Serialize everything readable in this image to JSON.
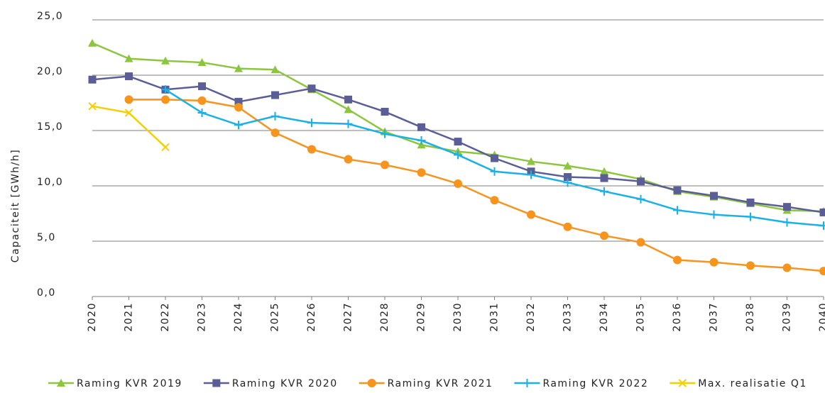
{
  "chart_data": {
    "type": "line",
    "y_label": "Capaciteit [GWh/h]",
    "categories": [
      "2020",
      "2021",
      "2022",
      "2023",
      "2024",
      "2025",
      "2026",
      "2027",
      "2028",
      "2029",
      "2030",
      "2031",
      "2032",
      "2033",
      "2034",
      "2035",
      "2036",
      "2037",
      "2038",
      "2039",
      "2040"
    ],
    "ylim": [
      0,
      25
    ],
    "yticks": [
      {
        "value": 0,
        "label": "0,0"
      },
      {
        "value": 5,
        "label": "5,0"
      },
      {
        "value": 10,
        "label": "10,0"
      },
      {
        "value": 15,
        "label": "15,0"
      },
      {
        "value": 20,
        "label": "20,0"
      },
      {
        "value": 25,
        "label": "25,0"
      }
    ],
    "grid": true,
    "legend": "bottom",
    "series": [
      {
        "name": "Raming KVR 2019",
        "color": "#8cc63e",
        "marker": "triangle",
        "values": [
          22.9,
          21.5,
          21.3,
          21.15,
          20.6,
          20.5,
          18.7,
          16.9,
          14.9,
          13.7,
          13.1,
          12.8,
          12.2,
          11.8,
          11.3,
          10.6,
          9.5,
          9.0,
          8.4,
          7.8,
          7.7
        ]
      },
      {
        "name": "Raming KVR 2020",
        "color": "#5b5e96",
        "marker": "square",
        "values": [
          19.6,
          19.9,
          18.7,
          19.0,
          17.6,
          18.2,
          18.8,
          17.8,
          16.7,
          15.3,
          14.0,
          12.5,
          11.3,
          10.8,
          10.7,
          10.4,
          9.6,
          9.1,
          8.5,
          8.1,
          7.6
        ]
      },
      {
        "name": "Raming KVR 2021",
        "color": "#f7941d",
        "marker": "circle",
        "values": [
          null,
          17.8,
          17.8,
          17.7,
          17.1,
          14.8,
          13.3,
          12.4,
          11.9,
          11.2,
          10.2,
          8.7,
          7.4,
          6.3,
          5.5,
          4.9,
          3.3,
          3.1,
          2.8,
          2.6,
          2.3
        ]
      },
      {
        "name": "Raming KVR 2022",
        "color": "#1ab0e8",
        "marker": "plus",
        "values": [
          null,
          null,
          18.7,
          16.6,
          15.5,
          16.3,
          15.7,
          15.6,
          14.7,
          14.1,
          12.8,
          11.3,
          11.0,
          10.3,
          9.5,
          8.8,
          7.8,
          7.4,
          7.2,
          6.7,
          6.4
        ]
      },
      {
        "name": "Max. realisatie Q1",
        "color": "#f5d000",
        "marker": "x",
        "values": [
          17.2,
          16.6,
          13.5,
          null,
          null,
          null,
          null,
          null,
          null,
          null,
          null,
          null,
          null,
          null,
          null,
          null,
          null,
          null,
          null,
          null,
          null
        ]
      }
    ]
  }
}
